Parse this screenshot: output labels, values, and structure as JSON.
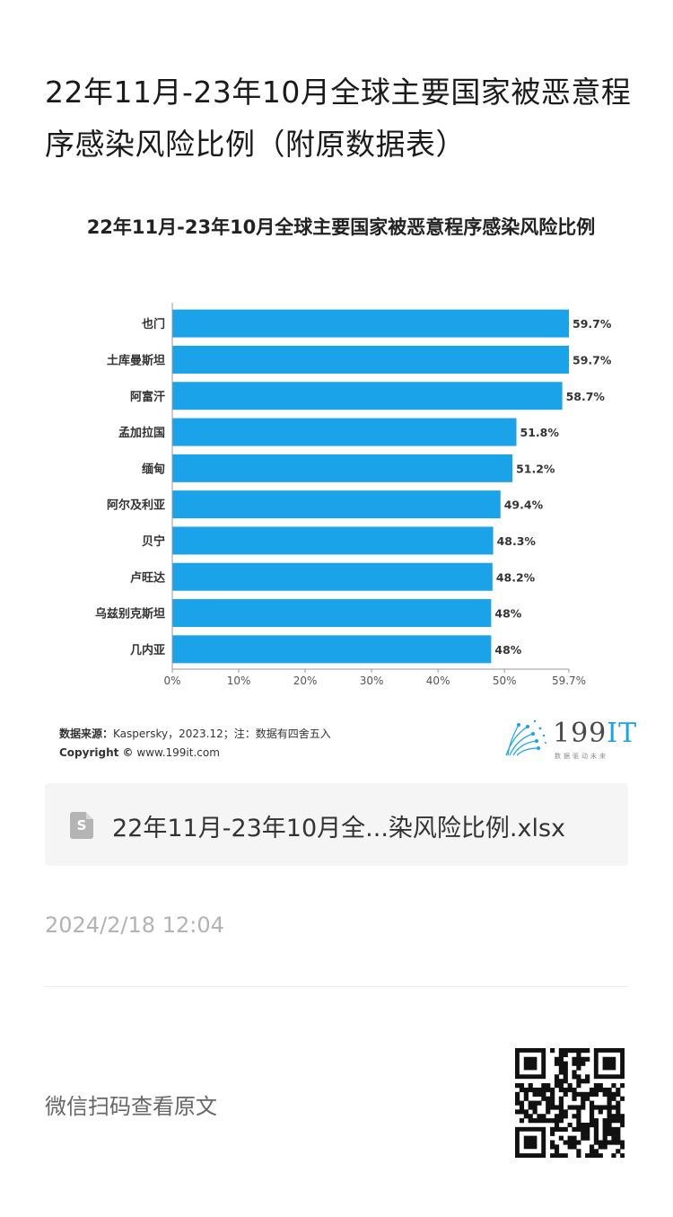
{
  "article": {
    "title": "22年11月-23年10月全球主要国家被恶意程序感染风险比例（附原数据表）"
  },
  "chart_data": {
    "type": "bar",
    "orientation": "horizontal",
    "title": "22年11月-23年10月全球主要国家被恶意程序感染风险比例",
    "categories": [
      "也门",
      "土库曼斯坦",
      "阿富汗",
      "孟加拉国",
      "缅甸",
      "阿尔及利亚",
      "贝宁",
      "卢旺达",
      "乌兹别克斯坦",
      "几内亚"
    ],
    "values": [
      59.7,
      59.7,
      58.7,
      51.8,
      51.2,
      49.4,
      48.3,
      48.2,
      48,
      48
    ],
    "value_labels": [
      "59.7%",
      "59.7%",
      "58.7%",
      "51.8%",
      "51.2%",
      "49.4%",
      "48.3%",
      "48.2%",
      "48%",
      "48%"
    ],
    "x_ticks": [
      0,
      10,
      20,
      30,
      40,
      50,
      59.7
    ],
    "x_tick_labels": [
      "0%",
      "10%",
      "20%",
      "30%",
      "40%",
      "50%",
      "59.7%"
    ],
    "xlim": [
      0,
      59.7
    ],
    "bar_color": "#1aa3e8",
    "grid": false
  },
  "source": {
    "label": "数据来源：",
    "text": "Kaspersky，2023.12；注：数据有四舍五入",
    "copyright_label": "Copyright ©",
    "copyright_site": "www.199it.com"
  },
  "brand": {
    "name_main": "199",
    "name_accent": "IT",
    "tagline": "数据驱动未来",
    "accent_color": "#1aa3e8"
  },
  "attachment": {
    "icon": "spreadsheet-file-icon",
    "icon_letter": "S",
    "file_name": "22年11月-23年10月全...染风险比例.xlsx"
  },
  "meta": {
    "timestamp": "2024/2/18 12:04",
    "scan_hint": "微信扫码查看原文"
  }
}
